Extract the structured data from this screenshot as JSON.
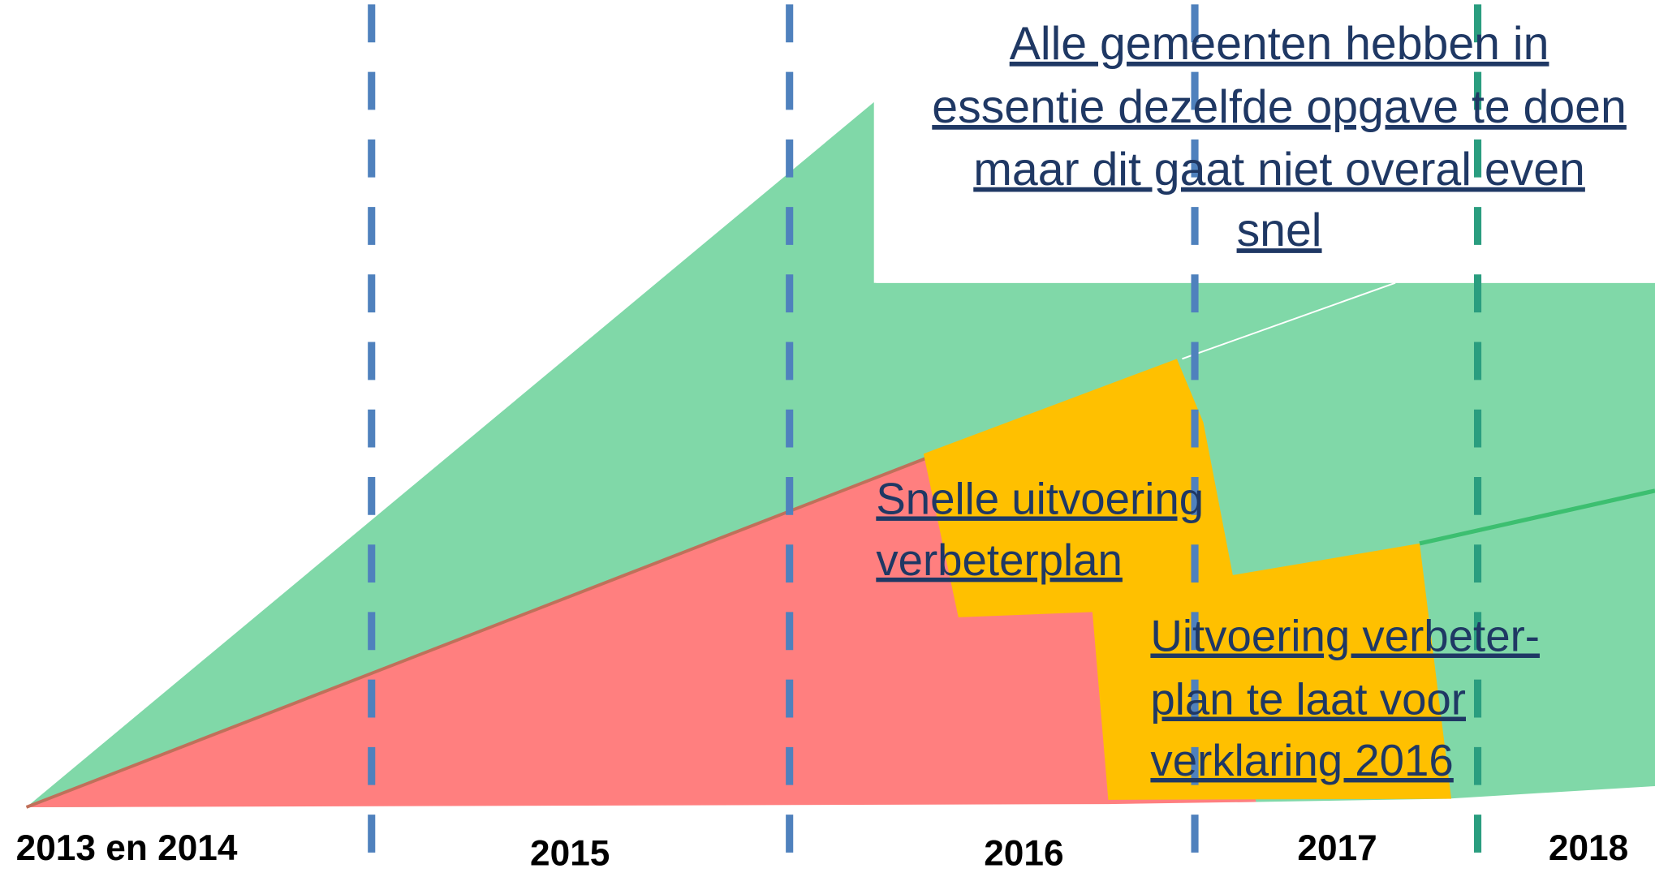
{
  "callouts": [
    {
      "lines": [
        "Alle gemeenten hebben in",
        "essentie dezelfde opgave te doen",
        "maar dit gaat niet overal even",
        "snel"
      ]
    },
    {
      "lines": [
        "Snelle uitvoering",
        "verbeterplan"
      ]
    },
    {
      "lines": [
        "Uitvoering verbeter-",
        "plan te laat voor",
        "verklaring 2016"
      ]
    }
  ],
  "timeline": {
    "periods": [
      "2013 en 2014",
      "2015",
      "2016",
      "2017",
      "2018"
    ]
  }
}
